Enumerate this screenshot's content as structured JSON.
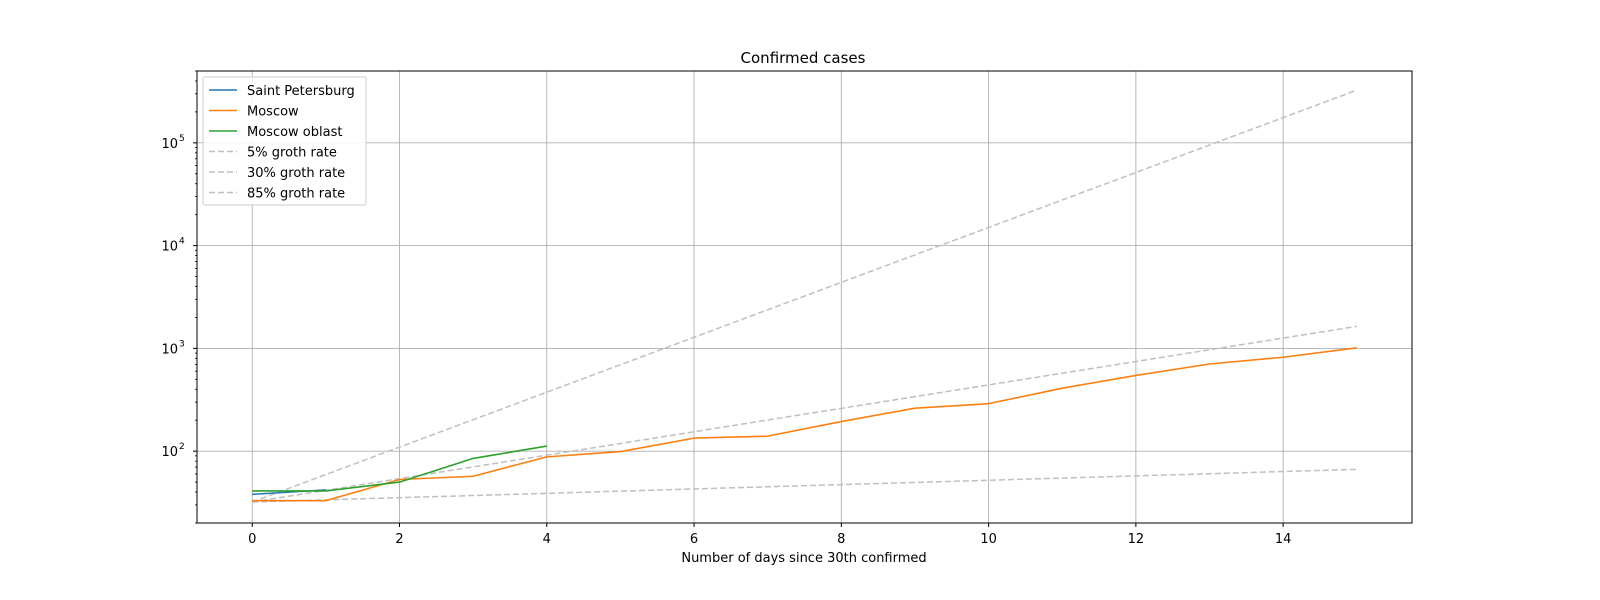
{
  "chart_data": {
    "type": "line",
    "title": "Confirmed cases",
    "xlabel": "Number of days since 30th confirmed",
    "ylabel": "",
    "yscale": "log",
    "xlim": [
      -0.75,
      15.75
    ],
    "ylim": [
      20,
      500000
    ],
    "grid": true,
    "legend_placement": "top-left",
    "x_ticks": [
      {
        "value": 0,
        "label": "0"
      },
      {
        "value": 2,
        "label": "2"
      },
      {
        "value": 4,
        "label": "4"
      },
      {
        "value": 6,
        "label": "6"
      },
      {
        "value": 8,
        "label": "8"
      },
      {
        "value": 10,
        "label": "10"
      },
      {
        "value": 12,
        "label": "12"
      },
      {
        "value": 14,
        "label": "14"
      }
    ],
    "y_ticks": [
      {
        "value": 100,
        "base": "10",
        "exp": "2"
      },
      {
        "value": 1000,
        "base": "10",
        "exp": "3"
      },
      {
        "value": 10000,
        "base": "10",
        "exp": "4"
      },
      {
        "value": 100000,
        "base": "10",
        "exp": "5"
      }
    ],
    "series": [
      {
        "name": "Saint Petersburg",
        "color": "#1f77b4",
        "style": "solid",
        "x": [
          0,
          1
        ],
        "y": [
          38,
          42
        ]
      },
      {
        "name": "Moscow",
        "color": "#ff7f0e",
        "style": "solid",
        "x": [
          0,
          1,
          2,
          3,
          4,
          5,
          6,
          7,
          8,
          9,
          10,
          11,
          12,
          13,
          14,
          15
        ],
        "y": [
          33,
          33,
          53,
          57,
          88,
          99,
          134,
          140,
          194,
          262,
          290,
          410,
          546,
          705,
          820,
          1014
        ]
      },
      {
        "name": "Moscow oblast",
        "color": "#2ca02c",
        "style": "solid",
        "x": [
          0,
          1,
          2,
          3,
          4
        ],
        "y": [
          41,
          41,
          50,
          85,
          112
        ]
      },
      {
        "name": "5% groth rate",
        "color": "#bfbfbf",
        "style": "dashed",
        "x": [
          0,
          1,
          2,
          3,
          4,
          5,
          6,
          7,
          8,
          9,
          10,
          11,
          12,
          13,
          14,
          15
        ],
        "y": [
          32,
          33.6,
          35.3,
          37.0,
          38.9,
          40.8,
          42.9,
          45.0,
          47.3,
          49.6,
          52.1,
          54.7,
          57.5,
          60.3,
          63.4,
          66.5
        ]
      },
      {
        "name": "30% groth rate",
        "color": "#bfbfbf",
        "style": "dashed",
        "x": [
          0,
          1,
          2,
          3,
          4,
          5,
          6,
          7,
          8,
          9,
          10,
          11,
          12,
          13,
          14,
          15
        ],
        "y": [
          32,
          41.6,
          54.1,
          70.3,
          91.4,
          118.8,
          154.5,
          200.8,
          261.0,
          339.4,
          441.2,
          573.5,
          745.6,
          969.3,
          1260,
          1638
        ]
      },
      {
        "name": "85% groth rate",
        "color": "#bfbfbf",
        "style": "dashed",
        "x": [
          0,
          1,
          2,
          3,
          4,
          5,
          6,
          7,
          8,
          9,
          10,
          11,
          12,
          13,
          14,
          15
        ],
        "y": [
          32,
          59.2,
          109.5,
          202.6,
          374.8,
          693.4,
          1283,
          2373,
          4390,
          8122,
          15026,
          27798,
          51427,
          95140,
          176009,
          325617
        ]
      }
    ]
  }
}
